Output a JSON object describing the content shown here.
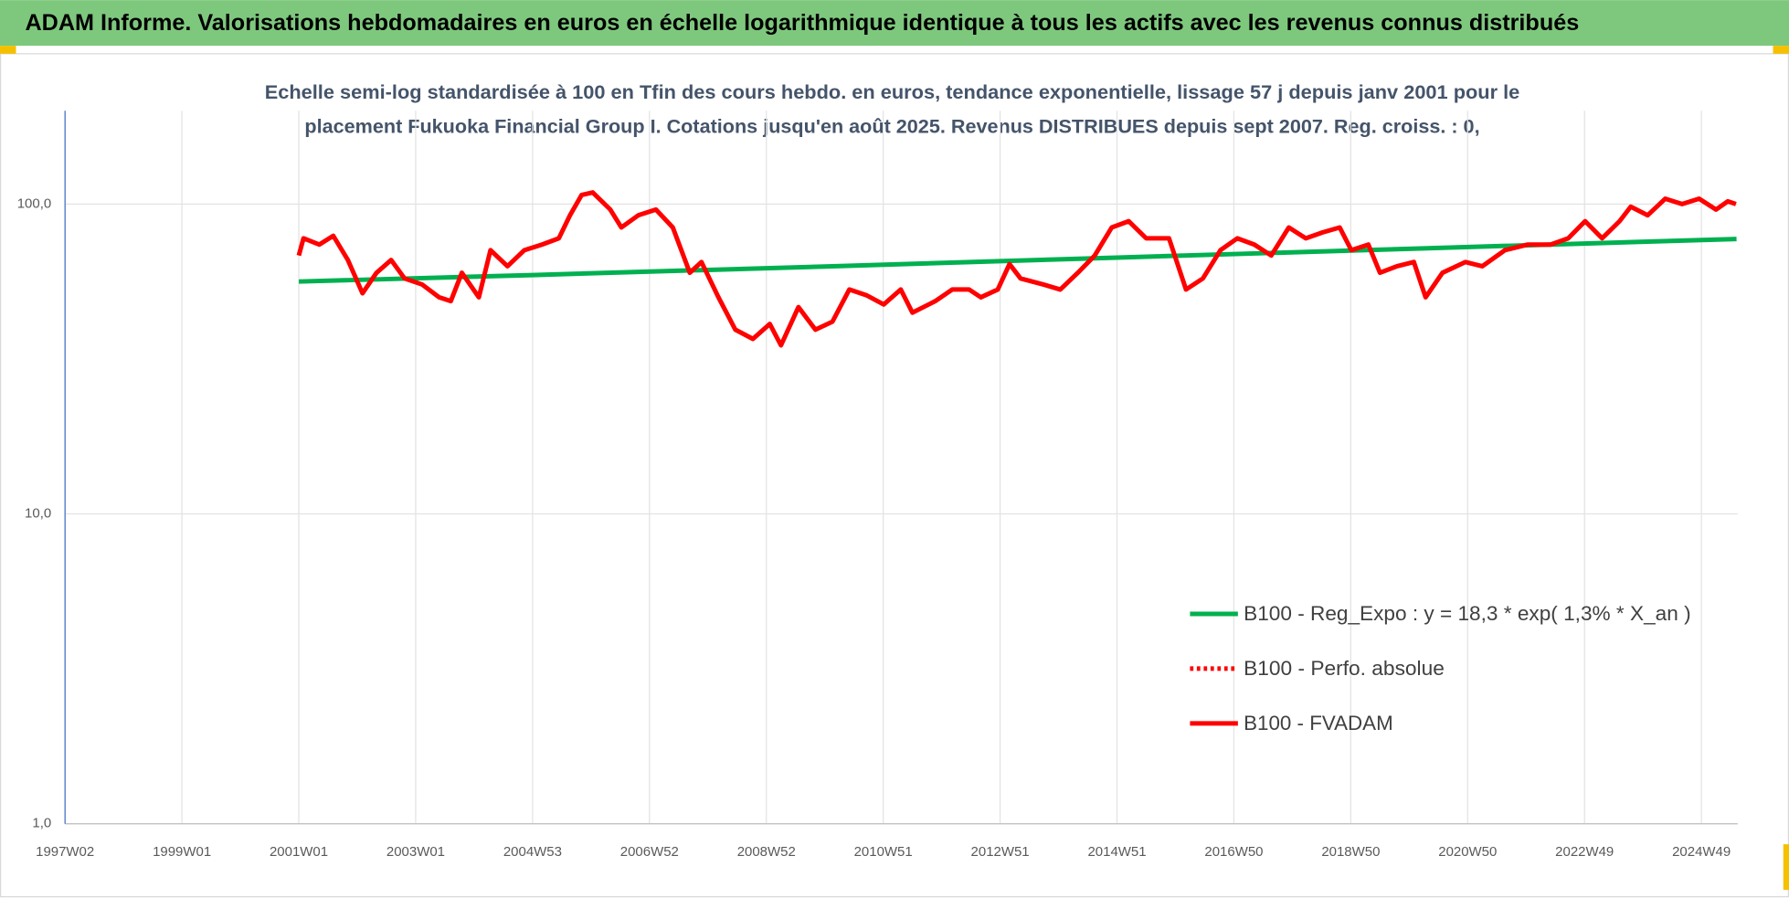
{
  "chart_data": {
    "type": "line",
    "title": "ADAM Informe. Valorisations hebdomadaires en euros en échelle logarithmique identique à tous les actifs avec les revenus connus distribués",
    "subtitle": [
      "Echelle semi-log standardisée à 100 en Tfin des cours hebdo. en euros, tendance exponentielle, lissage 57 j depuis janv 2001 pour le",
      "placement Fukuoka Financial Group I. Cotations jusqu'en août 2025. Revenus DISTRIBUES depuis sept 2007. Reg. croiss. : 0,"
    ],
    "log_scale": true,
    "grid": true,
    "legend": "lower right",
    "xlim": [
      1997.0,
      2025.62
    ],
    "xticks": [
      {
        "value": 1997.0,
        "label": "1997W02"
      },
      {
        "value": 1999.0,
        "label": "1999W01"
      },
      {
        "value": 2001.0,
        "label": "2001W01"
      },
      {
        "value": 2003.0,
        "label": "2003W01"
      },
      {
        "value": 2005.0,
        "label": "2004W53"
      },
      {
        "value": 2007.0,
        "label": "2006W52"
      },
      {
        "value": 2009.0,
        "label": "2008W52"
      },
      {
        "value": 2011.0,
        "label": "2010W51"
      },
      {
        "value": 2013.0,
        "label": "2012W51"
      },
      {
        "value": 2015.0,
        "label": "2014W51"
      },
      {
        "value": 2017.0,
        "label": "2016W50"
      },
      {
        "value": 2019.0,
        "label": "2018W50"
      },
      {
        "value": 2021.0,
        "label": "2020W50"
      },
      {
        "value": 2023.0,
        "label": "2022W49"
      },
      {
        "value": 2025.0,
        "label": "2024W49"
      }
    ],
    "ylim": [
      1,
      200
    ],
    "yticks": [
      {
        "value": 1,
        "label": "1,0"
      },
      {
        "value": 10,
        "label": "10,0"
      },
      {
        "value": 100,
        "label": "100,0"
      }
    ],
    "series": [
      {
        "name": "B100 - Reg_Expo : y = 18,3 * exp( 1,3% *  X_an )",
        "color": "#00b050",
        "dash": "solid",
        "x": [
          2001.0,
          2005.0,
          2010.0,
          2015.0,
          2020.0,
          2025.6
        ],
        "values": [
          56.2,
          59.0,
          62.9,
          67.2,
          71.7,
          77.1
        ]
      },
      {
        "name": "B100 - Perfo. absolue",
        "color": "#ff0000",
        "dash": "dotted"
      },
      {
        "name": "B100 - FVADAM",
        "color": "#ff0000",
        "dash": "solid",
        "x": [
          2001.0,
          2001.08,
          2001.35,
          2001.59,
          2001.84,
          2002.09,
          2002.33,
          2002.58,
          2002.81,
          2003.11,
          2003.4,
          2003.6,
          2003.79,
          2004.08,
          2004.28,
          2004.57,
          2004.86,
          2005.16,
          2005.45,
          2005.64,
          2005.84,
          2006.03,
          2006.33,
          2006.52,
          2006.81,
          2007.11,
          2007.4,
          2007.69,
          2007.89,
          2008.18,
          2008.47,
          2008.77,
          2009.06,
          2009.25,
          2009.55,
          2009.84,
          2010.13,
          2010.42,
          2010.72,
          2011.01,
          2011.3,
          2011.5,
          2011.89,
          2012.18,
          2012.47,
          2012.67,
          2012.96,
          2013.16,
          2013.35,
          2013.74,
          2014.03,
          2014.33,
          2014.62,
          2014.91,
          2015.2,
          2015.5,
          2015.89,
          2016.18,
          2016.47,
          2016.77,
          2017.06,
          2017.35,
          2017.64,
          2017.94,
          2018.23,
          2018.52,
          2018.81,
          2019.01,
          2019.3,
          2019.5,
          2019.79,
          2020.08,
          2020.28,
          2020.57,
          2020.96,
          2021.25,
          2021.64,
          2022.03,
          2022.42,
          2022.72,
          2023.01,
          2023.3,
          2023.6,
          2023.79,
          2024.08,
          2024.38,
          2024.67,
          2024.96,
          2025.25,
          2025.45,
          2025.59
        ],
        "values": [
          68.2,
          77.5,
          74,
          79,
          66,
          51.5,
          60,
          66,
          57.5,
          55,
          50,
          48.6,
          60,
          50,
          71,
          63,
          71,
          74,
          77.5,
          92,
          107,
          109,
          96,
          84,
          92,
          96,
          84,
          60,
          65,
          50,
          39.3,
          36.7,
          41,
          35,
          46.5,
          39.3,
          41.7,
          53,
          50.7,
          47.4,
          53,
          44.6,
          48.6,
          53,
          53,
          50,
          53,
          64,
          57.5,
          55,
          53,
          60,
          68.2,
          84,
          88,
          77.5,
          77.5,
          53,
          57.5,
          71,
          77.5,
          74,
          68.2,
          84,
          77.5,
          81,
          84,
          71,
          74,
          60,
          63,
          65,
          50,
          60,
          65,
          63,
          71,
          74,
          74,
          77.5,
          88,
          77.5,
          88,
          98,
          92,
          104,
          100,
          104,
          96,
          102,
          100
        ]
      }
    ]
  }
}
